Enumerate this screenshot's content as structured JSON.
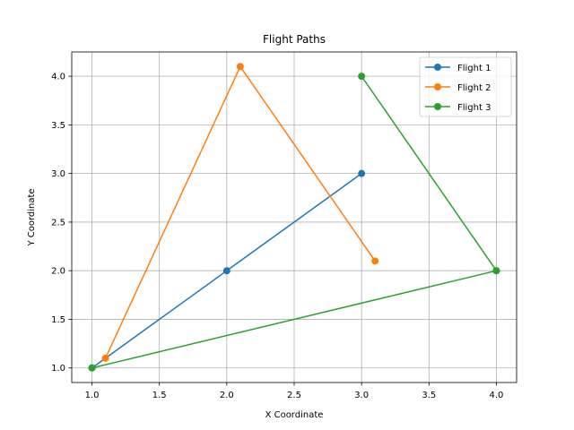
{
  "chart_data": {
    "type": "line",
    "title": "Flight Paths",
    "xlabel": "X Coordinate",
    "ylabel": "Y Coordinate",
    "xlim": [
      0.85,
      4.15
    ],
    "ylim": [
      0.85,
      4.25
    ],
    "xticks": [
      1.0,
      1.5,
      2.0,
      2.5,
      3.0,
      3.5,
      4.0
    ],
    "xtick_labels": [
      "1.0",
      "1.5",
      "2.0",
      "2.5",
      "3.0",
      "3.5",
      "4.0"
    ],
    "yticks": [
      1.0,
      1.5,
      2.0,
      2.5,
      3.0,
      3.5,
      4.0
    ],
    "ytick_labels": [
      "1.0",
      "1.5",
      "2.0",
      "2.5",
      "3.0",
      "3.5",
      "4.0"
    ],
    "grid": true,
    "legend_position": "top-right",
    "series": [
      {
        "name": "Flight 1",
        "color": "#1f77b4",
        "x": [
          1.0,
          2.0,
          3.0
        ],
        "y": [
          1.0,
          2.0,
          3.0
        ]
      },
      {
        "name": "Flight 2",
        "color": "#ff7f0e",
        "x": [
          1.1,
          2.1,
          3.1
        ],
        "y": [
          1.1,
          4.1,
          2.1
        ]
      },
      {
        "name": "Flight 3",
        "color": "#2ca02c",
        "x": [
          3.0,
          4.0,
          1.0,
          4.0
        ],
        "y": [
          4.0,
          2.0,
          1.0,
          2.0
        ]
      }
    ]
  }
}
